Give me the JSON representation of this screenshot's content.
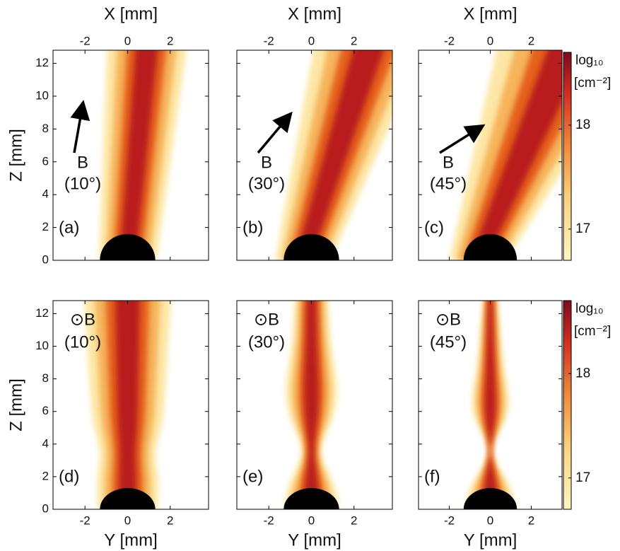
{
  "chart_data": [
    {
      "type": "heatmap",
      "xlabel": "X [mm]",
      "ylabel": "Z [mm]",
      "xlim": [
        -3.5,
        3.8
      ],
      "ylim": [
        0,
        12.8
      ],
      "xticks": [
        -2,
        0,
        2
      ],
      "yticks": [
        0,
        2,
        4,
        6,
        8,
        10,
        12
      ],
      "ytick_labels": true,
      "panel_label": "(a)",
      "field_label": "B",
      "angle_label": "(10°)"
    },
    {
      "type": "heatmap",
      "xlabel": "X [mm]",
      "xlim": [
        -3.5,
        3.8
      ],
      "ylim": [
        0,
        12.8
      ],
      "xticks": [
        -2,
        0,
        2
      ],
      "yticks": [
        0,
        2,
        4,
        6,
        8,
        10,
        12
      ],
      "ytick_labels": false,
      "panel_label": "(b)",
      "field_label": "B",
      "angle_label": "(30°)"
    },
    {
      "type": "heatmap",
      "xlabel": "X [mm]",
      "xlim": [
        -3.5,
        3.5
      ],
      "ylim": [
        0,
        12.8
      ],
      "xticks": [
        -2,
        0,
        2
      ],
      "yticks": [
        0,
        2,
        4,
        6,
        8,
        10,
        12
      ],
      "ytick_labels": false,
      "panel_label": "(c)",
      "field_label": "B",
      "angle_label": "(45°)"
    },
    {
      "type": "colorbar",
      "clim": [
        16.7,
        18.7
      ],
      "ticks": [
        17,
        18
      ],
      "label": "log₁₀",
      "unit": "[cm⁻²]"
    },
    {
      "type": "heatmap",
      "xlabel": "Y [mm]",
      "ylabel": "Z [mm]",
      "xlim": [
        -3.5,
        3.8
      ],
      "ylim": [
        0,
        12.8
      ],
      "xticks": [
        -2,
        0,
        2
      ],
      "yticks": [
        0,
        2,
        4,
        6,
        8,
        10,
        12
      ],
      "ytick_labels": true,
      "panel_label": "(d)",
      "field_label": "⊙B",
      "angle_label": "(10°)"
    },
    {
      "type": "heatmap",
      "xlabel": "Y [mm]",
      "xlim": [
        -3.5,
        3.8
      ],
      "ylim": [
        0,
        12.8
      ],
      "xticks": [
        -2,
        0,
        2
      ],
      "yticks": [
        0,
        2,
        4,
        6,
        8,
        10,
        12
      ],
      "ytick_labels": false,
      "panel_label": "(e)",
      "field_label": "⊙B",
      "angle_label": "(30°)"
    },
    {
      "type": "heatmap",
      "xlabel": "Y [mm]",
      "xlim": [
        -3.5,
        3.5
      ],
      "ylim": [
        0,
        12.8
      ],
      "xticks": [
        -2,
        0,
        2
      ],
      "yticks": [
        0,
        2,
        4,
        6,
        8,
        10,
        12
      ],
      "ytick_labels": false,
      "panel_label": "(f)",
      "field_label": "⊙B",
      "angle_label": "(45°)"
    },
    {
      "type": "colorbar",
      "clim": [
        16.7,
        18.7
      ],
      "ticks": [
        17,
        18
      ],
      "label": "log₁₀",
      "unit": "[cm⁻²]"
    }
  ]
}
